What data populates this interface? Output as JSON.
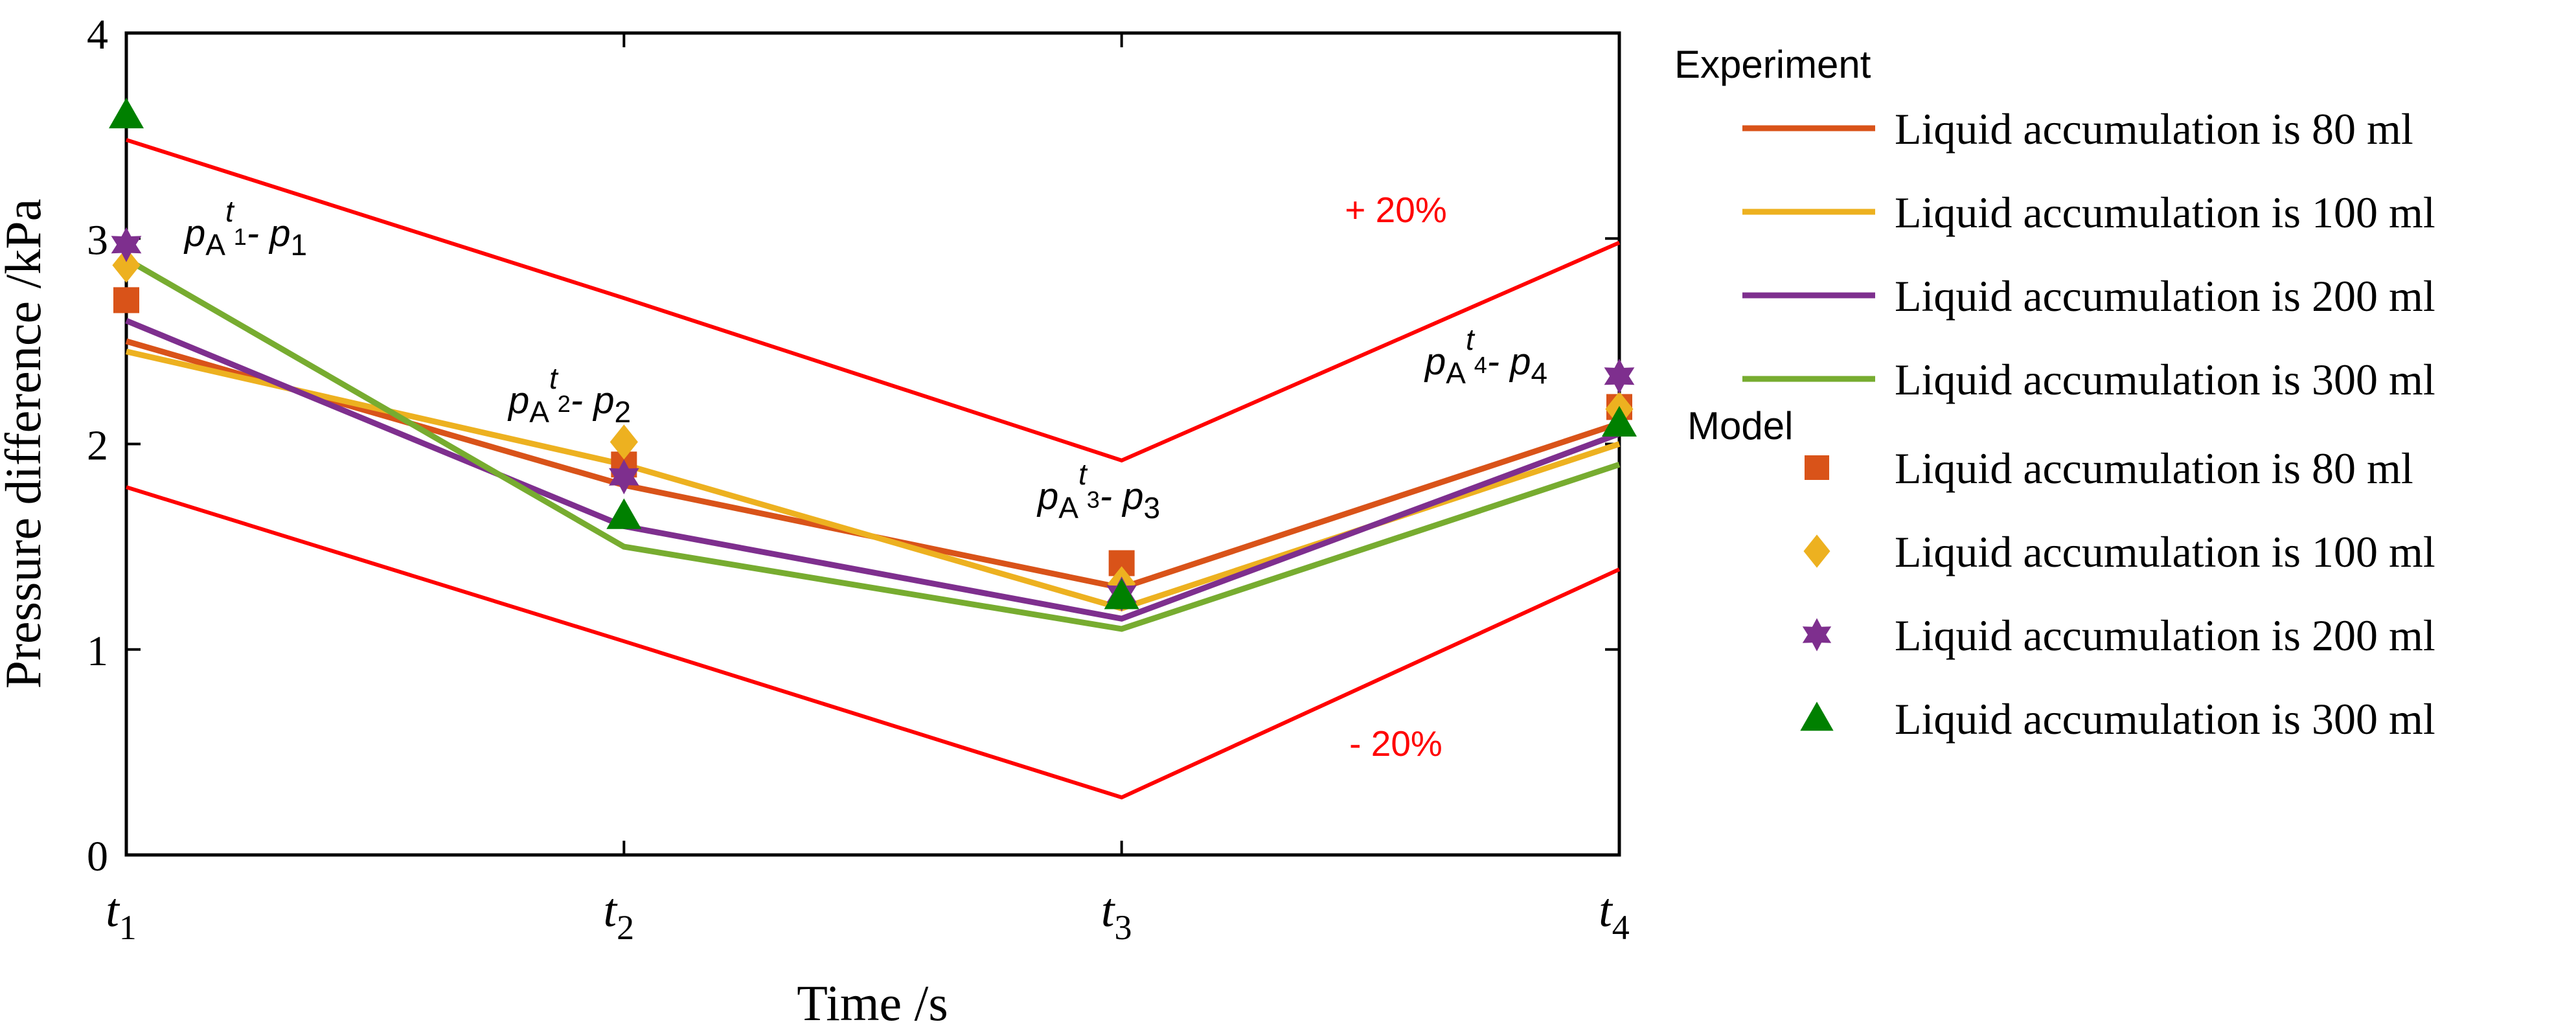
{
  "colors": {
    "s80": "#D95319",
    "s100": "#EDB120",
    "s200": "#7E2F8E",
    "s300": "#77AC30",
    "m80": "#D95319",
    "m100": "#EDB120",
    "m200": "#7E2F8E",
    "m300": "#008000",
    "band": "#FF0000",
    "axis": "#000000"
  },
  "chart_data": {
    "type": "line",
    "xlabel": "Time /s",
    "ylabel": "Pressure difference /kPa",
    "ylim": [
      0,
      4
    ],
    "yticks": [
      0,
      1,
      2,
      3,
      4
    ],
    "x": [
      1,
      2,
      3,
      4
    ],
    "xticks": [
      {
        "main": "t",
        "sub": "1"
      },
      {
        "main": "t",
        "sub": "2"
      },
      {
        "main": "t",
        "sub": "3"
      },
      {
        "main": "t",
        "sub": "4"
      }
    ],
    "experiment_series": [
      {
        "name": "Liquid accumulation is 80 ml",
        "values": [
          2.5,
          1.8,
          1.3,
          2.1
        ],
        "color_key": "s80"
      },
      {
        "name": "Liquid accumulation is 100 ml",
        "values": [
          2.45,
          1.9,
          1.2,
          2.0
        ],
        "color_key": "s100"
      },
      {
        "name": "Liquid accumulation is 200 ml",
        "values": [
          2.6,
          1.6,
          1.15,
          2.05
        ],
        "color_key": "s200"
      },
      {
        "name": "Liquid accumulation is 300 ml",
        "values": [
          2.9,
          1.5,
          1.1,
          1.9
        ],
        "color_key": "s300"
      }
    ],
    "model_series": [
      {
        "name": "Liquid accumulation is 80 ml",
        "marker": "square",
        "values": [
          2.7,
          1.9,
          1.42,
          2.18
        ],
        "color_key": "m80"
      },
      {
        "name": "Liquid accumulation is 100 ml",
        "marker": "diamond",
        "values": [
          2.87,
          2.01,
          1.32,
          2.17
        ],
        "color_key": "m100"
      },
      {
        "name": "Liquid accumulation is 200 ml",
        "marker": "star",
        "values": [
          2.97,
          1.84,
          1.27,
          2.33
        ],
        "color_key": "m200"
      },
      {
        "name": "Liquid accumulation is 300 ml",
        "marker": "triangle",
        "values": [
          3.6,
          1.65,
          1.26,
          2.1
        ],
        "color_key": "m300"
      }
    ],
    "bands": [
      {
        "label": "+ 20%",
        "values": [
          3.48,
          2.71,
          1.92,
          2.98
        ]
      },
      {
        "label": "- 20%",
        "values": [
          1.79,
          1.04,
          0.28,
          1.39
        ]
      }
    ],
    "annotations": [
      {
        "p1": "p",
        "sub1": "A",
        "sup": "t",
        "subsup": "1",
        "rest": "- p",
        "sub2": "1"
      },
      {
        "p1": "p",
        "sub1": "A",
        "sup": "t",
        "subsup": "2",
        "rest": "- p",
        "sub2": "2"
      },
      {
        "p1": "p",
        "sub1": "A",
        "sup": "t",
        "subsup": "3",
        "rest": "- p",
        "sub2": "3"
      },
      {
        "p1": "p",
        "sub1": "A",
        "sup": "t",
        "subsup": "4",
        "rest": "- p",
        "sub2": "4"
      }
    ],
    "legend": {
      "experiment_title": "Experiment",
      "model_title": "Model",
      "position": "right"
    }
  }
}
